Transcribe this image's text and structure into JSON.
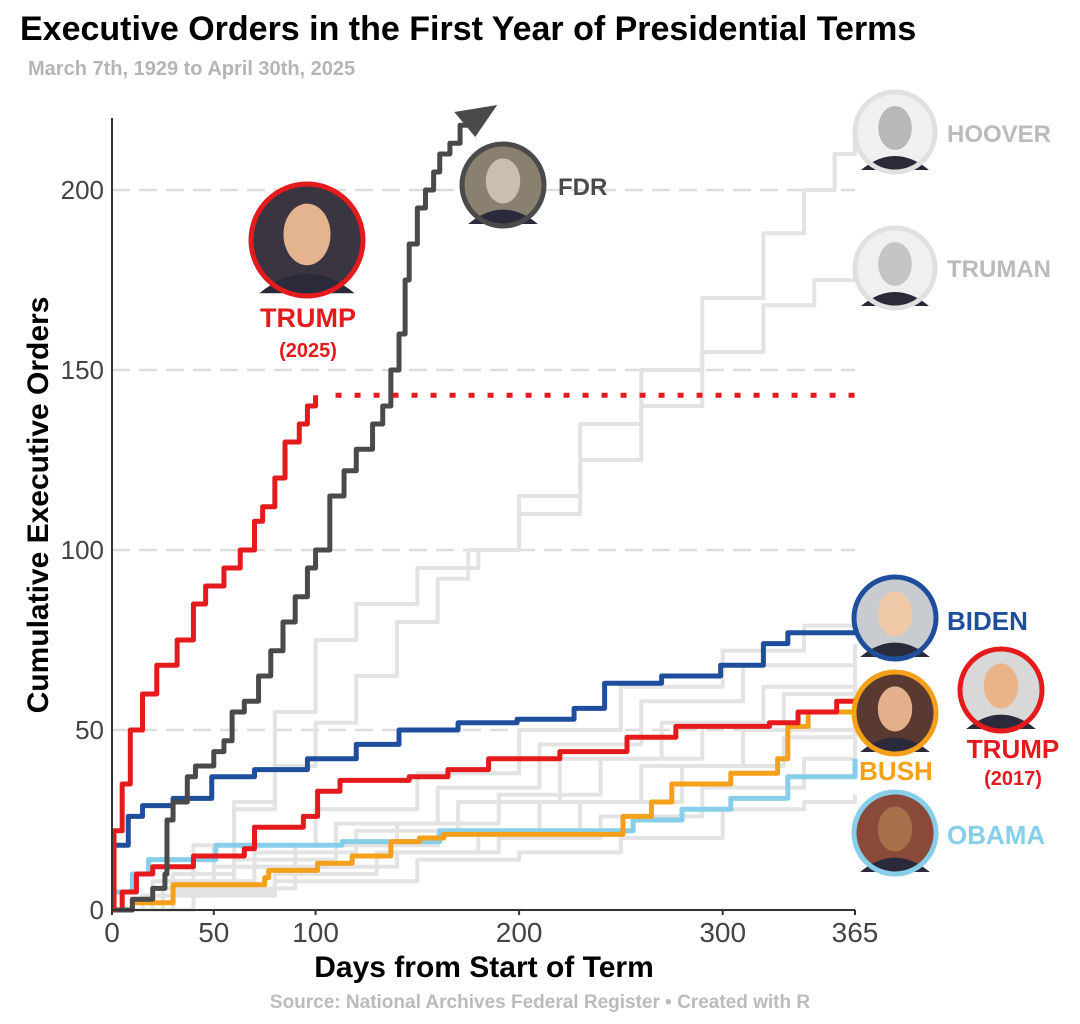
{
  "title": "Executive Orders in the First Year of Presidential Terms",
  "subtitle": "March 7th, 1929 to April 30th, 2025",
  "source": "Source: National Archives Federal Register  •  Created with R",
  "chart_data": {
    "type": "line",
    "step": true,
    "xlabel": "Days from Start of Term",
    "ylabel": "Cumulative Executive Orders",
    "xlim": [
      0,
      365
    ],
    "ylim": [
      0,
      220
    ],
    "x_ticks": [
      "0",
      "50",
      "100",
      "200",
      "300",
      "365"
    ],
    "x_tick_values": [
      0,
      50,
      100,
      200,
      300,
      365
    ],
    "y_ticks": [
      "0",
      "50",
      "100",
      "150",
      "200"
    ],
    "y_tick_values": [
      0,
      50,
      100,
      150,
      200
    ],
    "grid": "horizontal dashed",
    "highlight": [
      {
        "name": "TRUMP",
        "sub": "(2025)",
        "color": "#e41a1c",
        "points": [
          [
            0,
            0
          ],
          [
            1,
            22
          ],
          [
            5,
            35
          ],
          [
            9,
            50
          ],
          [
            15,
            60
          ],
          [
            22,
            68
          ],
          [
            32,
            75
          ],
          [
            40,
            85
          ],
          [
            46,
            90
          ],
          [
            55,
            95
          ],
          [
            63,
            100
          ],
          [
            70,
            108
          ],
          [
            74,
            112
          ],
          [
            80,
            120
          ],
          [
            85,
            130
          ],
          [
            92,
            135
          ],
          [
            96,
            140
          ],
          [
            100,
            143
          ]
        ],
        "projection": [
          [
            100,
            143
          ],
          [
            365,
            143
          ]
        ]
      },
      {
        "name": "FDR",
        "color": "#4a4a4a",
        "arrow": true,
        "points": [
          [
            0,
            0
          ],
          [
            10,
            3
          ],
          [
            20,
            6
          ],
          [
            26,
            10
          ],
          [
            27,
            25
          ],
          [
            30,
            30
          ],
          [
            37,
            37
          ],
          [
            41,
            40
          ],
          [
            50,
            44
          ],
          [
            55,
            47
          ],
          [
            59,
            55
          ],
          [
            65,
            58
          ],
          [
            72,
            65
          ],
          [
            78,
            72
          ],
          [
            84,
            80
          ],
          [
            90,
            87
          ],
          [
            96,
            95
          ],
          [
            100,
            100
          ],
          [
            107,
            115
          ],
          [
            114,
            122
          ],
          [
            120,
            128
          ],
          [
            128,
            135
          ],
          [
            133,
            140
          ],
          [
            137,
            150
          ],
          [
            141,
            160
          ],
          [
            144,
            175
          ],
          [
            146,
            185
          ],
          [
            150,
            195
          ],
          [
            154,
            200
          ],
          [
            158,
            205
          ],
          [
            161,
            210
          ],
          [
            166,
            213
          ],
          [
            171,
            218
          ],
          [
            175,
            220
          ]
        ]
      },
      {
        "name": "BIDEN",
        "color": "#1f4e9c",
        "points": [
          [
            0,
            0
          ],
          [
            1,
            18
          ],
          [
            8,
            26
          ],
          [
            15,
            29
          ],
          [
            30,
            31
          ],
          [
            49,
            37
          ],
          [
            70,
            39
          ],
          [
            96,
            42
          ],
          [
            120,
            46
          ],
          [
            141,
            50
          ],
          [
            170,
            52
          ],
          [
            199,
            53
          ],
          [
            227,
            56
          ],
          [
            242,
            63
          ],
          [
            270,
            65
          ],
          [
            299,
            68
          ],
          [
            320,
            74
          ],
          [
            332,
            77
          ],
          [
            365,
            77
          ]
        ]
      },
      {
        "name": "TRUMP",
        "sub": "(2017)",
        "color": "#e41a1c",
        "points": [
          [
            0,
            0
          ],
          [
            5,
            5
          ],
          [
            12,
            10
          ],
          [
            20,
            12
          ],
          [
            40,
            15
          ],
          [
            65,
            17
          ],
          [
            70,
            23
          ],
          [
            94,
            26
          ],
          [
            101,
            33
          ],
          [
            112,
            36
          ],
          [
            146,
            37
          ],
          [
            165,
            39
          ],
          [
            185,
            42
          ],
          [
            220,
            44
          ],
          [
            253,
            48
          ],
          [
            277,
            51
          ],
          [
            323,
            52
          ],
          [
            337,
            55
          ],
          [
            356,
            58
          ],
          [
            365,
            58
          ]
        ]
      },
      {
        "name": "BUSH",
        "color": "#f5a01a",
        "points": [
          [
            0,
            0
          ],
          [
            10,
            2
          ],
          [
            30,
            7
          ],
          [
            75,
            9
          ],
          [
            77,
            11
          ],
          [
            101,
            13
          ],
          [
            118,
            15
          ],
          [
            137,
            19
          ],
          [
            151,
            20
          ],
          [
            163,
            21
          ],
          [
            251,
            26
          ],
          [
            265,
            30
          ],
          [
            275,
            35
          ],
          [
            304,
            38
          ],
          [
            327,
            42
          ],
          [
            332,
            51
          ],
          [
            342,
            55
          ],
          [
            365,
            56
          ]
        ]
      },
      {
        "name": "OBAMA",
        "color": "#87ceeb",
        "points": [
          [
            0,
            5
          ],
          [
            10,
            10
          ],
          [
            18,
            14
          ],
          [
            51,
            18
          ],
          [
            113,
            19
          ],
          [
            161,
            22
          ],
          [
            251,
            22
          ],
          [
            256,
            25
          ],
          [
            280,
            28
          ],
          [
            304,
            31
          ],
          [
            332,
            37
          ],
          [
            365,
            42
          ]
        ]
      }
    ],
    "background_series": [
      {
        "name": "HOOVER",
        "color": "#bbbbbb",
        "points": [
          [
            0,
            0
          ],
          [
            20,
            8
          ],
          [
            40,
            18
          ],
          [
            60,
            28
          ],
          [
            80,
            40
          ],
          [
            100,
            52
          ],
          [
            120,
            65
          ],
          [
            140,
            80
          ],
          [
            160,
            92
          ],
          [
            175,
            100
          ],
          [
            200,
            115
          ],
          [
            230,
            135
          ],
          [
            260,
            150
          ],
          [
            290,
            170
          ],
          [
            320,
            188
          ],
          [
            340,
            200
          ],
          [
            355,
            210
          ],
          [
            365,
            217
          ]
        ]
      },
      {
        "name": "TRUMAN",
        "color": "#bbbbbb",
        "points": [
          [
            0,
            0
          ],
          [
            30,
            10
          ],
          [
            60,
            30
          ],
          [
            80,
            55
          ],
          [
            100,
            75
          ],
          [
            120,
            85
          ],
          [
            150,
            95
          ],
          [
            180,
            100
          ],
          [
            200,
            110
          ],
          [
            230,
            125
          ],
          [
            260,
            140
          ],
          [
            290,
            155
          ],
          [
            320,
            168
          ],
          [
            345,
            175
          ],
          [
            365,
            177
          ]
        ]
      },
      {
        "points": [
          [
            0,
            0
          ],
          [
            20,
            8
          ],
          [
            50,
            18
          ],
          [
            100,
            28
          ],
          [
            150,
            38
          ],
          [
            200,
            50
          ],
          [
            250,
            62
          ],
          [
            300,
            72
          ],
          [
            340,
            79
          ],
          [
            365,
            80
          ]
        ]
      },
      {
        "points": [
          [
            0,
            0
          ],
          [
            25,
            6
          ],
          [
            60,
            14
          ],
          [
            110,
            24
          ],
          [
            160,
            34
          ],
          [
            210,
            46
          ],
          [
            260,
            58
          ],
          [
            310,
            68
          ],
          [
            365,
            74
          ]
        ]
      },
      {
        "points": [
          [
            0,
            0
          ],
          [
            30,
            8
          ],
          [
            70,
            16
          ],
          [
            120,
            22
          ],
          [
            170,
            30
          ],
          [
            220,
            42
          ],
          [
            270,
            52
          ],
          [
            320,
            62
          ],
          [
            365,
            70
          ]
        ]
      },
      {
        "points": [
          [
            0,
            0
          ],
          [
            15,
            4
          ],
          [
            50,
            12
          ],
          [
            90,
            18
          ],
          [
            140,
            24
          ],
          [
            190,
            32
          ],
          [
            240,
            42
          ],
          [
            290,
            52
          ],
          [
            330,
            60
          ],
          [
            365,
            65
          ]
        ]
      },
      {
        "points": [
          [
            0,
            0
          ],
          [
            20,
            6
          ],
          [
            60,
            12
          ],
          [
            110,
            18
          ],
          [
            160,
            22
          ],
          [
            210,
            30
          ],
          [
            260,
            40
          ],
          [
            310,
            50
          ],
          [
            365,
            62
          ]
        ]
      },
      {
        "points": [
          [
            0,
            0
          ],
          [
            30,
            5
          ],
          [
            80,
            10
          ],
          [
            130,
            16
          ],
          [
            180,
            22
          ],
          [
            230,
            30
          ],
          [
            280,
            40
          ],
          [
            330,
            48
          ],
          [
            365,
            55
          ]
        ]
      },
      {
        "points": [
          [
            0,
            0
          ],
          [
            40,
            6
          ],
          [
            90,
            12
          ],
          [
            140,
            16
          ],
          [
            190,
            20
          ],
          [
            240,
            26
          ],
          [
            290,
            34
          ],
          [
            340,
            42
          ],
          [
            365,
            48
          ]
        ]
      },
      {
        "points": [
          [
            0,
            0
          ],
          [
            30,
            4
          ],
          [
            80,
            8
          ],
          [
            150,
            14
          ],
          [
            200,
            16
          ],
          [
            250,
            20
          ],
          [
            300,
            28
          ],
          [
            340,
            30
          ],
          [
            365,
            32
          ]
        ]
      }
    ],
    "labels": {
      "fdr": "FDR",
      "hoover": "HOOVER",
      "truman": "TRUMAN",
      "trump2025": "TRUMP",
      "trump2025_sub": "(2025)",
      "biden": "BIDEN",
      "bush": "BUSH",
      "trump2017": "TRUMP",
      "trump2017_sub": "(2017)",
      "obama": "OBAMA"
    },
    "colors": {
      "grid": "#dddddd",
      "axis": "#333333",
      "gray_series": "#e3e3e3",
      "gray_label": "#bbbbbb"
    }
  }
}
